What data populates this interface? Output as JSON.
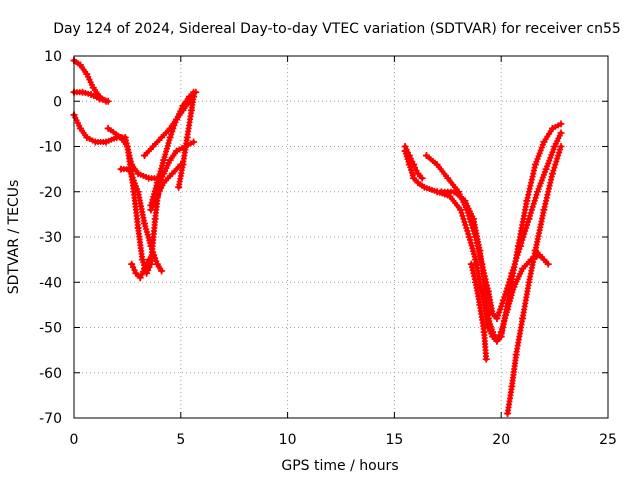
{
  "chart_data": {
    "type": "scatter",
    "title": "Day 124 of 2024, Sidereal Day-to-day VTEC variation (SDTVAR) for receiver cn55",
    "xlabel": "GPS time / hours",
    "ylabel": "SDTVAR / TECUs",
    "xlim": [
      0,
      25
    ],
    "ylim": [
      -70,
      10
    ],
    "xticks": [
      0,
      5,
      10,
      15,
      20,
      25
    ],
    "yticks": [
      10,
      0,
      -10,
      -20,
      -30,
      -40,
      -50,
      -60,
      -70
    ],
    "grid": true,
    "legend": false,
    "marker": "+",
    "color": "#ff0000",
    "series": [
      {
        "name": "track-1",
        "x": [
          0.0,
          0.3,
          0.6,
          0.9,
          1.2,
          1.5
        ],
        "y": [
          9,
          8,
          6,
          3,
          1,
          0
        ]
      },
      {
        "name": "track-2",
        "x": [
          0.0,
          0.4,
          0.8,
          1.2,
          1.6
        ],
        "y": [
          2,
          2,
          1.5,
          0.5,
          0
        ]
      },
      {
        "name": "track-3",
        "x": [
          0.0,
          0.3,
          0.6,
          1.0,
          1.5,
          2.0,
          2.4,
          2.7,
          3.0,
          3.5,
          3.9
        ],
        "y": [
          -3,
          -6,
          -8,
          -9,
          -9,
          -8,
          -8,
          -14,
          -16,
          -17,
          -17
        ]
      },
      {
        "name": "track-4",
        "x": [
          1.6,
          2.2,
          2.5,
          2.8,
          3.0,
          3.2,
          3.4,
          3.6,
          3.8,
          4.0,
          4.2,
          4.5,
          4.8,
          5.2,
          5.6
        ],
        "y": [
          -6,
          -8,
          -10,
          -20,
          -28,
          -35,
          -38,
          -36,
          -26,
          -18,
          -16,
          -13,
          -11,
          -10,
          -9
        ]
      },
      {
        "name": "track-5",
        "x": [
          2.2,
          2.6,
          3.0,
          3.3,
          3.6,
          3.9,
          4.1
        ],
        "y": [
          -15,
          -15,
          -20,
          -27,
          -32,
          -36,
          -37.5
        ]
      },
      {
        "name": "track-6",
        "x": [
          2.7,
          2.9,
          3.1,
          3.3,
          3.5
        ],
        "y": [
          -36,
          -38,
          -39,
          -37,
          -35
        ]
      },
      {
        "name": "track-7",
        "x": [
          3.3,
          3.7,
          4.1,
          4.5,
          4.8,
          5.1,
          5.4,
          5.6
        ],
        "y": [
          -12,
          -10,
          -8,
          -6,
          -4,
          -2,
          0,
          2
        ]
      },
      {
        "name": "track-8",
        "x": [
          3.6,
          3.9,
          4.2,
          4.5,
          4.8,
          5.1,
          5.4,
          5.7
        ],
        "y": [
          -23,
          -18,
          -13,
          -8,
          -4,
          -1,
          1,
          2
        ]
      },
      {
        "name": "track-9",
        "x": [
          3.6,
          3.9,
          4.2,
          4.6,
          5.0
        ],
        "y": [
          -24,
          -21,
          -18,
          -16,
          -14
        ]
      },
      {
        "name": "track-10",
        "x": [
          4.9,
          5.1,
          5.3,
          5.5,
          5.6
        ],
        "y": [
          -19,
          -14,
          -8,
          -2,
          1
        ]
      },
      {
        "name": "track-11",
        "x": [
          15.5,
          15.7,
          15.9,
          16.1,
          16.4,
          17.0,
          17.6,
          18.1,
          18.5,
          18.8,
          19.0,
          19.2,
          19.4,
          19.6,
          19.8,
          20.0,
          20.4,
          20.8,
          21.2,
          21.6,
          22.0,
          22.4,
          22.8
        ],
        "y": [
          -11,
          -14,
          -17,
          -18,
          -19,
          -20,
          -21,
          -24,
          -30,
          -35,
          -40,
          -45,
          -50,
          -52,
          -53,
          -52,
          -42,
          -32,
          -22,
          -14,
          -9,
          -6,
          -5
        ]
      },
      {
        "name": "track-12",
        "x": [
          15.5,
          15.7,
          15.9,
          16.1,
          16.3
        ],
        "y": [
          -10,
          -12,
          -14,
          -16,
          -17
        ]
      },
      {
        "name": "track-13",
        "x": [
          16.5,
          17.0,
          17.5,
          18.0,
          18.4,
          18.8,
          19.1,
          19.4,
          19.6,
          19.8,
          20.1,
          20.5,
          20.9,
          21.3,
          21.7,
          22.1,
          22.5,
          22.8
        ],
        "y": [
          -12,
          -14,
          -17,
          -20,
          -24,
          -30,
          -36,
          -42,
          -47,
          -48,
          -44,
          -38,
          -32,
          -26,
          -20,
          -15,
          -10,
          -7
        ]
      },
      {
        "name": "track-14",
        "x": [
          17.2,
          17.8,
          18.3,
          18.7,
          19.0,
          19.2,
          19.4,
          19.6,
          19.8,
          20.0,
          20.3,
          20.6,
          21.0,
          21.4,
          21.8
        ],
        "y": [
          -20,
          -20,
          -22,
          -26,
          -33,
          -40,
          -48,
          -51,
          -53,
          -51,
          -46,
          -41,
          -37,
          -35,
          -34
        ]
      },
      {
        "name": "track-15",
        "x": [
          18.6,
          18.8,
          19.0,
          19.2,
          19.3
        ],
        "y": [
          -36,
          -40,
          -45,
          -51,
          -57
        ]
      },
      {
        "name": "track-16",
        "x": [
          20.3,
          20.5,
          20.7,
          21.0,
          21.3,
          21.6,
          22.0,
          22.4,
          22.8
        ],
        "y": [
          -69,
          -63,
          -56,
          -48,
          -40,
          -33,
          -24,
          -16,
          -10
        ]
      },
      {
        "name": "track-17",
        "x": [
          21.6,
          21.8,
          22.0,
          22.2
        ],
        "y": [
          -33,
          -34,
          -35,
          -36
        ]
      }
    ]
  }
}
